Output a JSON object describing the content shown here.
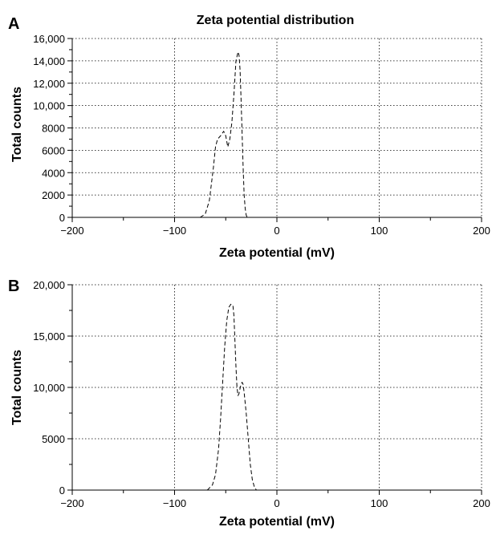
{
  "figure": {
    "title": "Zeta potential distribution"
  },
  "chart_data": [
    {
      "panel_label": "A",
      "type": "line",
      "title": "Zeta potential distribution",
      "xlabel": "Zeta potential (mV)",
      "ylabel": "Total counts",
      "xlim": [
        -200,
        200
      ],
      "ylim": [
        0,
        16000
      ],
      "xticks": [
        -200,
        -100,
        0,
        100,
        200
      ],
      "xtick_labels": [
        "−200",
        "−100",
        "0",
        "100",
        "200"
      ],
      "yticks": [
        0,
        2000,
        4000,
        6000,
        8000,
        10000,
        12000,
        14000,
        16000
      ],
      "ytick_labels": [
        "0",
        "2000",
        "4000",
        "6000",
        "8000",
        "10,000",
        "12,000",
        "14,000",
        "16,000"
      ],
      "grid": true,
      "line_style": "dashed",
      "series": [
        {
          "x": [
            -75,
            -70,
            -66,
            -62,
            -60,
            -58,
            -55,
            -52,
            -50,
            -48,
            -46,
            -44,
            -42,
            -40,
            -38,
            -37,
            -36,
            -35,
            -34,
            -33,
            -32,
            -31,
            -30,
            -29
          ],
          "y": [
            0,
            300,
            1500,
            4500,
            6300,
            7000,
            7300,
            7700,
            7300,
            6300,
            7000,
            8500,
            11000,
            14000,
            14800,
            14500,
            13200,
            10500,
            7500,
            4500,
            2000,
            800,
            200,
            0
          ]
        }
      ]
    },
    {
      "panel_label": "B",
      "type": "line",
      "title": "",
      "xlabel": "Zeta potential (mV)",
      "ylabel": "Total counts",
      "xlim": [
        -200,
        200
      ],
      "ylim": [
        0,
        20000
      ],
      "xticks": [
        -200,
        -100,
        0,
        100,
        200
      ],
      "xtick_labels": [
        "−200",
        "−100",
        "0",
        "100",
        "200"
      ],
      "yticks": [
        0,
        5000,
        10000,
        15000,
        20000
      ],
      "ytick_labels": [
        "0",
        "5000",
        "10,000",
        "15,000",
        "20,000"
      ],
      "grid": true,
      "line_style": "dashed",
      "series": [
        {
          "x": [
            -68,
            -63,
            -60,
            -57,
            -55,
            -53,
            -51,
            -49,
            -47,
            -45,
            -43,
            -42,
            -41,
            -40,
            -39,
            -38,
            -37,
            -36,
            -35,
            -34,
            -33,
            -32,
            -30,
            -28,
            -26,
            -24,
            -22,
            -20
          ],
          "y": [
            0,
            500,
            1500,
            4000,
            7000,
            10500,
            14000,
            16500,
            17800,
            18100,
            18000,
            17000,
            14500,
            12000,
            10000,
            9200,
            9400,
            9900,
            10300,
            10500,
            10300,
            9500,
            7500,
            5000,
            2500,
            1000,
            300,
            0
          ]
        }
      ]
    }
  ]
}
